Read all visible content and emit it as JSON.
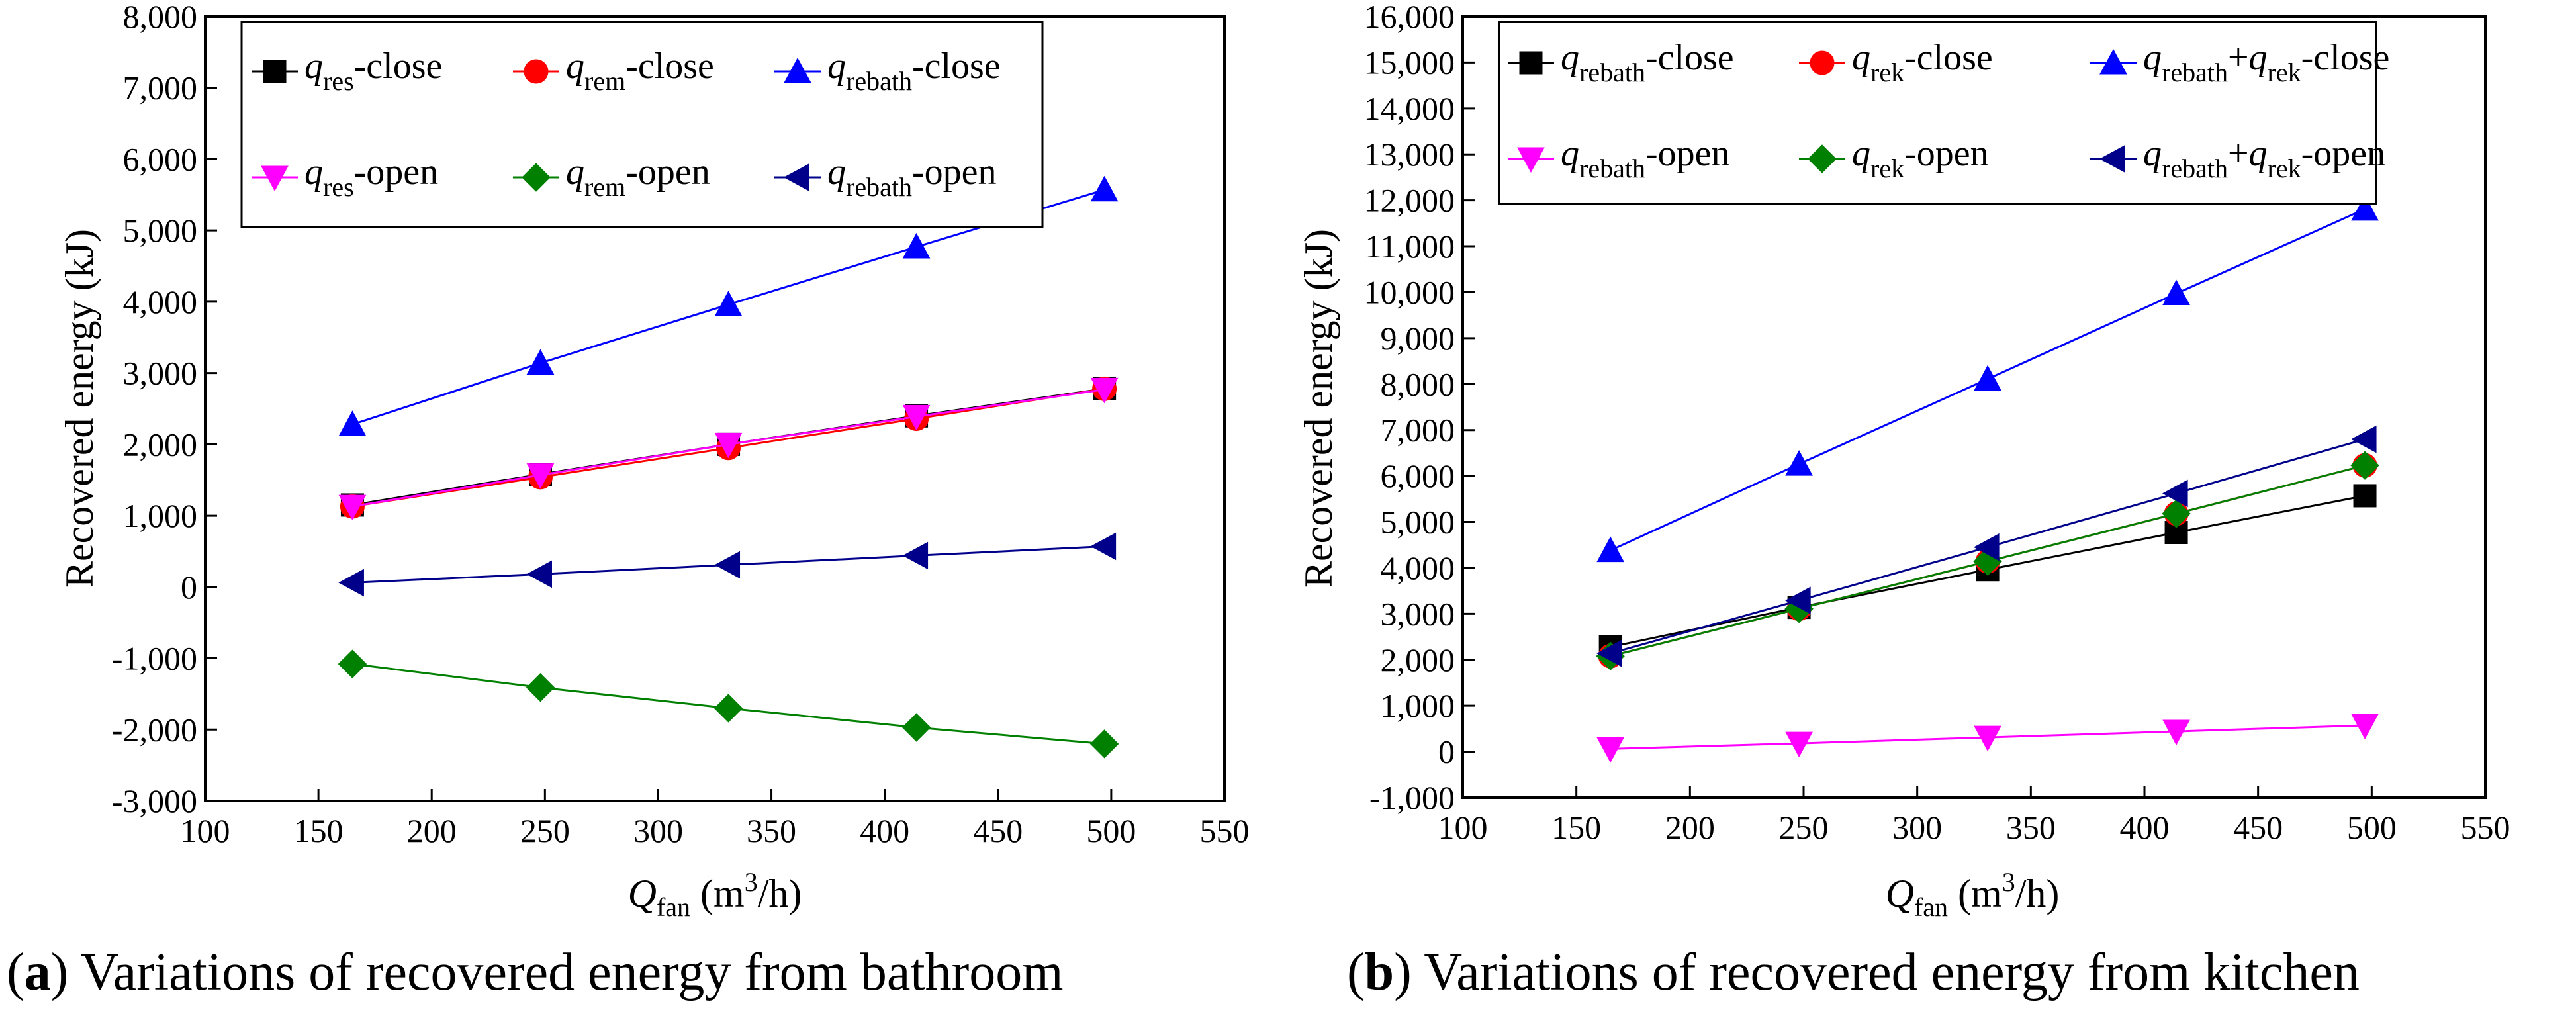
{
  "chart_data": [
    {
      "type": "line",
      "caption": {
        "letter": "a",
        "text": " Variations of recovered energy from bathroom"
      },
      "xlabel": {
        "main": "Q",
        "sub": "fan",
        "unit": " (m",
        "sup": "3",
        "unit_end": "/h)"
      },
      "ylabel": "Recovered energy (kJ)",
      "xlim": [
        100,
        550
      ],
      "ylim": [
        -3000,
        8000
      ],
      "x_ticks": [
        100,
        150,
        200,
        250,
        300,
        350,
        400,
        450,
        500,
        550
      ],
      "x_tick_labels": [
        "100",
        "150",
        "200",
        "250",
        "300",
        "350",
        "400",
        "450",
        "500",
        "550"
      ],
      "y_ticks": [
        -3000,
        -2000,
        -1000,
        0,
        1000,
        2000,
        3000,
        4000,
        5000,
        6000,
        7000,
        8000
      ],
      "y_tick_labels": [
        "-3,000",
        "-2,000",
        "-1,000",
        "0",
        "1,000",
        "2,000",
        "3,000",
        "4,000",
        "5,000",
        "6,000",
        "7,000",
        "8,000"
      ],
      "x": [
        165,
        248,
        331,
        414,
        497
      ],
      "legend": {
        "placement": "top-left",
        "columns": 3
      },
      "series": [
        {
          "name": "q_res-close",
          "label": {
            "q": "q",
            "sub": "res",
            "suffix": "-close"
          },
          "marker": "square",
          "color": "#000000",
          "values": [
            1150,
            1580,
            2000,
            2400,
            2780
          ]
        },
        {
          "name": "q_rem-close",
          "label": {
            "q": "q",
            "sub": "rem",
            "suffix": "-close"
          },
          "marker": "circle",
          "color": "#ff0000",
          "values": [
            1130,
            1540,
            1950,
            2360,
            2780
          ]
        },
        {
          "name": "q_rebath-close",
          "label": {
            "q": "q",
            "sub": "rebath",
            "suffix": "-close"
          },
          "marker": "triangle-up",
          "color": "#0000ff",
          "values": [
            2280,
            3140,
            3960,
            4770,
            5570
          ]
        },
        {
          "name": "q_res-open",
          "label": {
            "q": "q",
            "sub": "res",
            "suffix": "-open"
          },
          "marker": "triangle-down",
          "color": "#ff00ff",
          "values": [
            1130,
            1570,
            2000,
            2390,
            2770
          ]
        },
        {
          "name": "q_rem-open",
          "label": {
            "q": "q",
            "sub": "rem",
            "suffix": "-open"
          },
          "marker": "diamond",
          "color": "#008000",
          "values": [
            -1080,
            -1410,
            -1700,
            -1970,
            -2200
          ]
        },
        {
          "name": "q_rebath-open",
          "label": {
            "q": "q",
            "sub": "rebath",
            "suffix": "-open"
          },
          "marker": "triangle-left",
          "color": "#00008b",
          "values": [
            60,
            180,
            310,
            440,
            570
          ]
        }
      ]
    },
    {
      "type": "line",
      "caption": {
        "letter": "b",
        "text": " Variations of recovered energy from kitchen"
      },
      "xlabel": {
        "main": "Q",
        "sub": "fan",
        "unit": " (m",
        "sup": "3",
        "unit_end": "/h)"
      },
      "ylabel": "Recovered energy (kJ)",
      "xlim": [
        100,
        550
      ],
      "ylim": [
        -1000,
        16000
      ],
      "x_ticks": [
        100,
        150,
        200,
        250,
        300,
        350,
        400,
        450,
        500,
        550
      ],
      "x_tick_labels": [
        "100",
        "150",
        "200",
        "250",
        "300",
        "350",
        "400",
        "450",
        "500",
        "550"
      ],
      "y_ticks": [
        -1000,
        0,
        1000,
        2000,
        3000,
        4000,
        5000,
        6000,
        7000,
        8000,
        9000,
        10000,
        11000,
        12000,
        13000,
        14000,
        15000,
        16000
      ],
      "y_tick_labels": [
        "-1,000",
        "0",
        "1,000",
        "2,000",
        "3,000",
        "4,000",
        "5,000",
        "6,000",
        "7,000",
        "8,000",
        "9,000",
        "10,000",
        "11,000",
        "12,000",
        "13,000",
        "14,000",
        "15,000",
        "16,000"
      ],
      "x": [
        165,
        248,
        331,
        414,
        497
      ],
      "legend": {
        "placement": "top-left",
        "columns": 3
      },
      "series": [
        {
          "name": "q_rebath-close",
          "label": {
            "q": "q",
            "sub": "rebath",
            "suffix": "-close"
          },
          "marker": "square",
          "color": "#000000",
          "values": [
            2280,
            3140,
            3960,
            4770,
            5570
          ]
        },
        {
          "name": "q_rek-close",
          "label": {
            "q": "q",
            "sub": "rek",
            "suffix": "-close"
          },
          "marker": "circle",
          "color": "#ff0000",
          "values": [
            2080,
            3110,
            4140,
            5180,
            6230
          ]
        },
        {
          "name": "q_rebath+q_rek-close",
          "label": {
            "q": "q",
            "sub": "rebath",
            "plus": "+",
            "q2": "q",
            "sub2": "rek",
            "suffix": "-close"
          },
          "marker": "triangle-up",
          "color": "#0000ff",
          "values": [
            4380,
            6260,
            8110,
            9970,
            11810
          ]
        },
        {
          "name": "q_rebath-open",
          "label": {
            "q": "q",
            "sub": "rebath",
            "suffix": "-open"
          },
          "marker": "triangle-down",
          "color": "#ff00ff",
          "values": [
            60,
            180,
            310,
            440,
            570
          ]
        },
        {
          "name": "q_rek-open",
          "label": {
            "q": "q",
            "sub": "rek",
            "suffix": "-open"
          },
          "marker": "diamond",
          "color": "#008000",
          "values": [
            2080,
            3110,
            4140,
            5180,
            6230
          ]
        },
        {
          "name": "q_rebath+q_rek-open",
          "label": {
            "q": "q",
            "sub": "rebath",
            "plus": "+",
            "q2": "q",
            "sub2": "rek",
            "suffix": "-open"
          },
          "marker": "triangle-left",
          "color": "#00008b",
          "values": [
            2140,
            3290,
            4450,
            5620,
            6800
          ]
        }
      ]
    }
  ]
}
